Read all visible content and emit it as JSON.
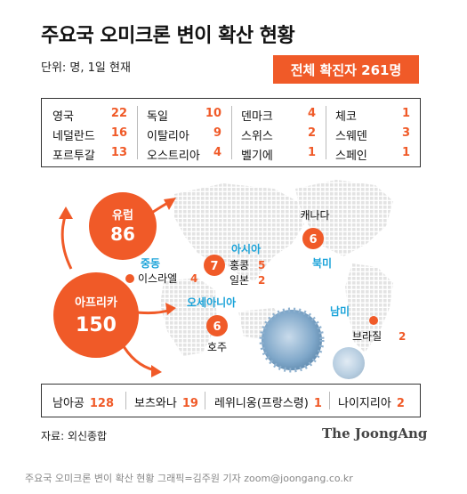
{
  "title": "주요국 오미크론 변이 확산 현황",
  "unit": "단위: 명, 1일 현재",
  "total": "전체 확진자 261명",
  "europe_table": [
    {
      "name": "영국",
      "value": "22"
    },
    {
      "name": "독일",
      "value": "10"
    },
    {
      "name": "덴마크",
      "value": "4"
    },
    {
      "name": "체코",
      "value": "1"
    },
    {
      "name": "네덜란드",
      "value": "16"
    },
    {
      "name": "이탈리아",
      "value": "9"
    },
    {
      "name": "스위스",
      "value": "2"
    },
    {
      "name": "스웨덴",
      "value": "3"
    },
    {
      "name": "포르투갈",
      "value": "13"
    },
    {
      "name": "오스트리아",
      "value": "4"
    },
    {
      "name": "벨기에",
      "value": "1"
    },
    {
      "name": "스페인",
      "value": "1"
    }
  ],
  "regions": {
    "europe": {
      "label": "유럽",
      "value": "86"
    },
    "africa": {
      "label": "아프리카",
      "value": "150"
    },
    "middle_east": {
      "label": "중동",
      "country": "이스라엘",
      "value": "4"
    },
    "asia": {
      "label": "아시아",
      "total": "7",
      "items": [
        {
          "name": "홍콩",
          "value": "5"
        },
        {
          "name": "일본",
          "value": "2"
        }
      ]
    },
    "oceania": {
      "label": "오세아니아",
      "total": "6",
      "country": "호주"
    },
    "north_america": {
      "label": "북미",
      "total": "6",
      "country": "캐나다"
    },
    "south_america": {
      "label": "남미",
      "country": "브라질",
      "value": "2"
    }
  },
  "africa_table": [
    {
      "name": "남아공",
      "value": "128"
    },
    {
      "name": "보츠와나",
      "value": "19"
    },
    {
      "name": "레위니옹(프랑스령)",
      "value": "1"
    },
    {
      "name": "나이지리아",
      "value": "2"
    }
  ],
  "source": "자료: 외신종합",
  "logo": "The JoongAng",
  "credit": "주요국 오미크론 변이 확산 현황 그래픽=김주원 기자 zoom@joongang.co.kr",
  "colors": {
    "accent": "#f05a28",
    "label_blue": "#1aa3d9",
    "map_dots": "#e1e1e1",
    "virus": "#7fa7c9"
  }
}
